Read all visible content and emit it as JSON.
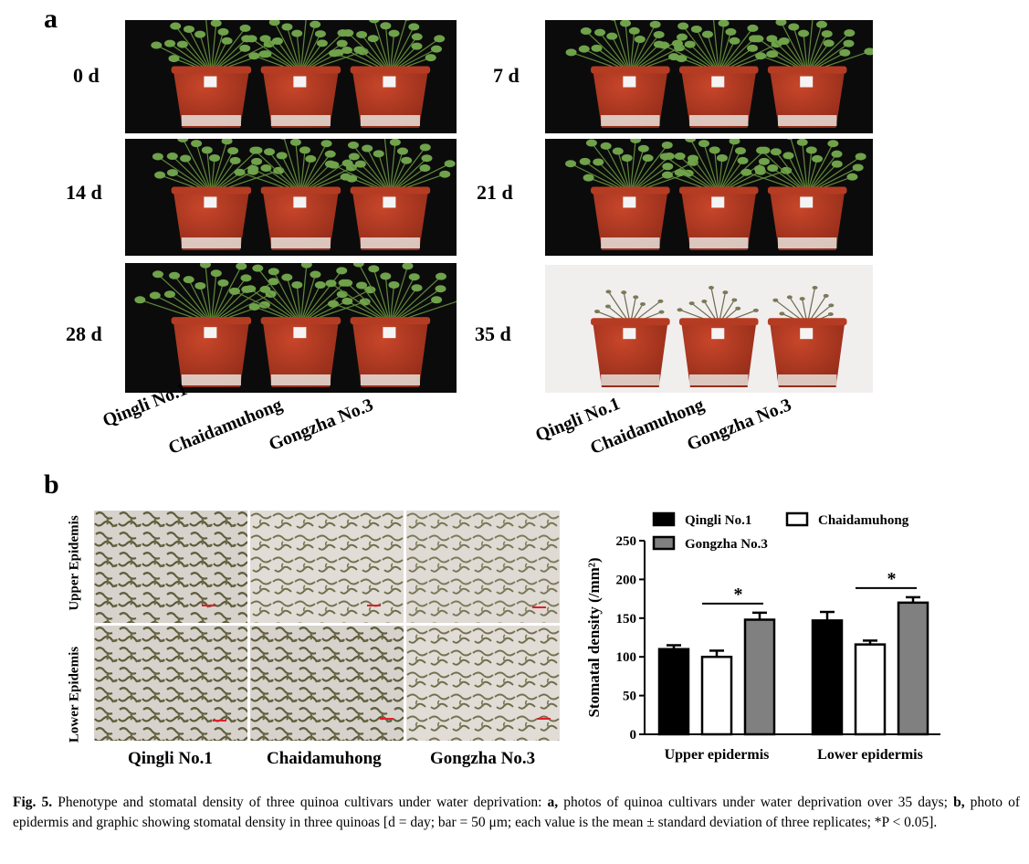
{
  "panel_a": {
    "letter": "a",
    "days": [
      "0 d",
      "7 d",
      "14 d",
      "21 d",
      "28 d",
      "35 d"
    ],
    "cultivars": [
      "Qingli No.1",
      "Chaidamuhong",
      "Gongzha No.3"
    ]
  },
  "panel_b": {
    "letter": "b",
    "row_labels": [
      "Upper Epidemis",
      "Lower Epidemis"
    ],
    "column_labels": [
      "Qingli No.1",
      "Chaidamuhong",
      "Gongzha No.3"
    ]
  },
  "colors": {
    "qingli": "#000000",
    "chaidamuhong": "#ffffff",
    "gongzha": "#808080"
  },
  "chart_data": {
    "type": "bar",
    "categories": [
      "Upper epidermis",
      "Lower epidermis"
    ],
    "series": [
      {
        "name": "Qingli No.1",
        "values": [
          110,
          147
        ],
        "errors": [
          5,
          11
        ]
      },
      {
        "name": "Chaidamuhong",
        "values": [
          100,
          116
        ],
        "errors": [
          8,
          5
        ]
      },
      {
        "name": "Gongzha No.3",
        "values": [
          148,
          170
        ],
        "errors": [
          9,
          7
        ]
      }
    ],
    "ylabel": "Stomatal density (/mm²)",
    "ylim": [
      0,
      250
    ],
    "yticks": [
      0,
      50,
      100,
      150,
      200,
      250
    ],
    "significance": [
      "*",
      "*"
    ],
    "grid": false,
    "legend_placement": "top"
  },
  "caption": {
    "fig_label": "Fig. 5.",
    "intro": " Phenotype and stomatal density of three quinoa cultivars under water deprivation: ",
    "a_label": "a,",
    "a_text": " photos of quinoa cultivars under water deprivation over 35 days; ",
    "b_label": "b,",
    "b_text": " photo of epidermis  and graphic showing stomatal density in three quinoas [d = day; bar = 50 μm; each value is the mean ± standard deviation of three replicates; *P < 0.05]."
  }
}
